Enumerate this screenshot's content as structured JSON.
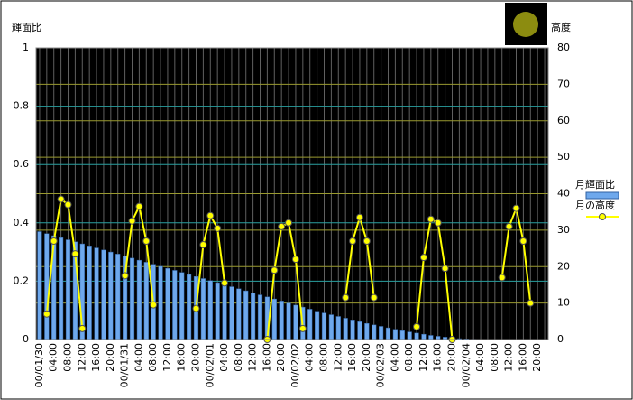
{
  "chart_data": {
    "type": "bar-line",
    "y_axis_label": "輝面比",
    "y2_axis_label": "高度",
    "categories": [
      "00/01/30",
      null,
      "04:00",
      null,
      "08:00",
      null,
      "12:00",
      null,
      "16:00",
      null,
      "20:00",
      null,
      "00/01/31",
      null,
      "04:00",
      null,
      "08:00",
      null,
      "12:00",
      null,
      "16:00",
      null,
      "20:00",
      null,
      "00/02/01",
      null,
      "04:00",
      null,
      "08:00",
      null,
      "12:00",
      null,
      "16:00",
      null,
      "20:00",
      null,
      "00/02/02",
      null,
      "04:00",
      null,
      "08:00",
      null,
      "12:00",
      null,
      "16:00",
      null,
      "20:00",
      null,
      "00/02/03",
      null,
      "04:00",
      null,
      "08:00",
      null,
      "12:00",
      null,
      "16:00",
      null,
      "20:00",
      null,
      "00/02/04",
      null,
      "04:00",
      null,
      "08:00",
      null,
      "12:00",
      null,
      "16:00",
      null,
      "20:00",
      null
    ],
    "series": [
      {
        "name": "月輝面比",
        "type": "bar",
        "color": "#6ea8ec",
        "values": [
          0.37,
          0.363,
          0.356,
          0.349,
          0.342,
          0.335,
          0.328,
          0.321,
          0.314,
          0.307,
          0.3,
          0.293,
          0.286,
          0.279,
          0.272,
          0.265,
          0.258,
          0.251,
          0.244,
          0.237,
          0.23,
          0.223,
          0.216,
          0.209,
          0.202,
          0.195,
          0.188,
          0.181,
          0.174,
          0.167,
          0.16,
          0.153,
          0.146,
          0.139,
          0.132,
          0.125,
          0.118,
          0.111,
          0.104,
          0.097,
          0.091,
          0.085,
          0.079,
          0.073,
          0.067,
          0.061,
          0.055,
          0.05,
          0.045,
          0.04,
          0.035,
          0.03,
          0.026,
          0.022,
          0.018,
          0.014,
          0.011,
          0.008,
          0.005,
          0.003,
          0.002,
          0.001,
          0,
          0,
          0,
          0,
          0,
          0,
          0,
          0,
          0,
          0
        ]
      },
      {
        "name": "月の高度",
        "type": "line",
        "axis": "y2",
        "color": "#ffff00",
        "values": [
          null,
          7,
          27,
          38.5,
          37,
          23.5,
          3,
          null,
          null,
          null,
          null,
          null,
          17.5,
          32.5,
          36.5,
          27,
          9.5,
          null,
          null,
          null,
          null,
          null,
          8.5,
          26,
          34,
          30.5,
          15.5,
          null,
          null,
          null,
          null,
          null,
          0,
          19,
          31,
          32,
          22,
          3,
          null,
          null,
          null,
          null,
          null,
          11.5,
          27,
          33.5,
          27,
          11.5,
          null,
          null,
          null,
          null,
          null,
          3.5,
          22.5,
          33,
          32,
          19.5,
          0,
          null,
          null,
          null,
          null,
          null,
          null,
          17,
          31,
          36,
          27,
          10,
          null,
          null
        ]
      }
    ],
    "ylim": [
      0,
      1
    ],
    "yticks": [
      0,
      0.2,
      0.4,
      0.6,
      0.8,
      1
    ],
    "y2lim": [
      0,
      80
    ],
    "y2ticks": [
      0,
      10,
      20,
      30,
      40,
      50,
      60,
      70,
      80
    ],
    "grid": true,
    "legend": "right",
    "background": "#000000"
  }
}
